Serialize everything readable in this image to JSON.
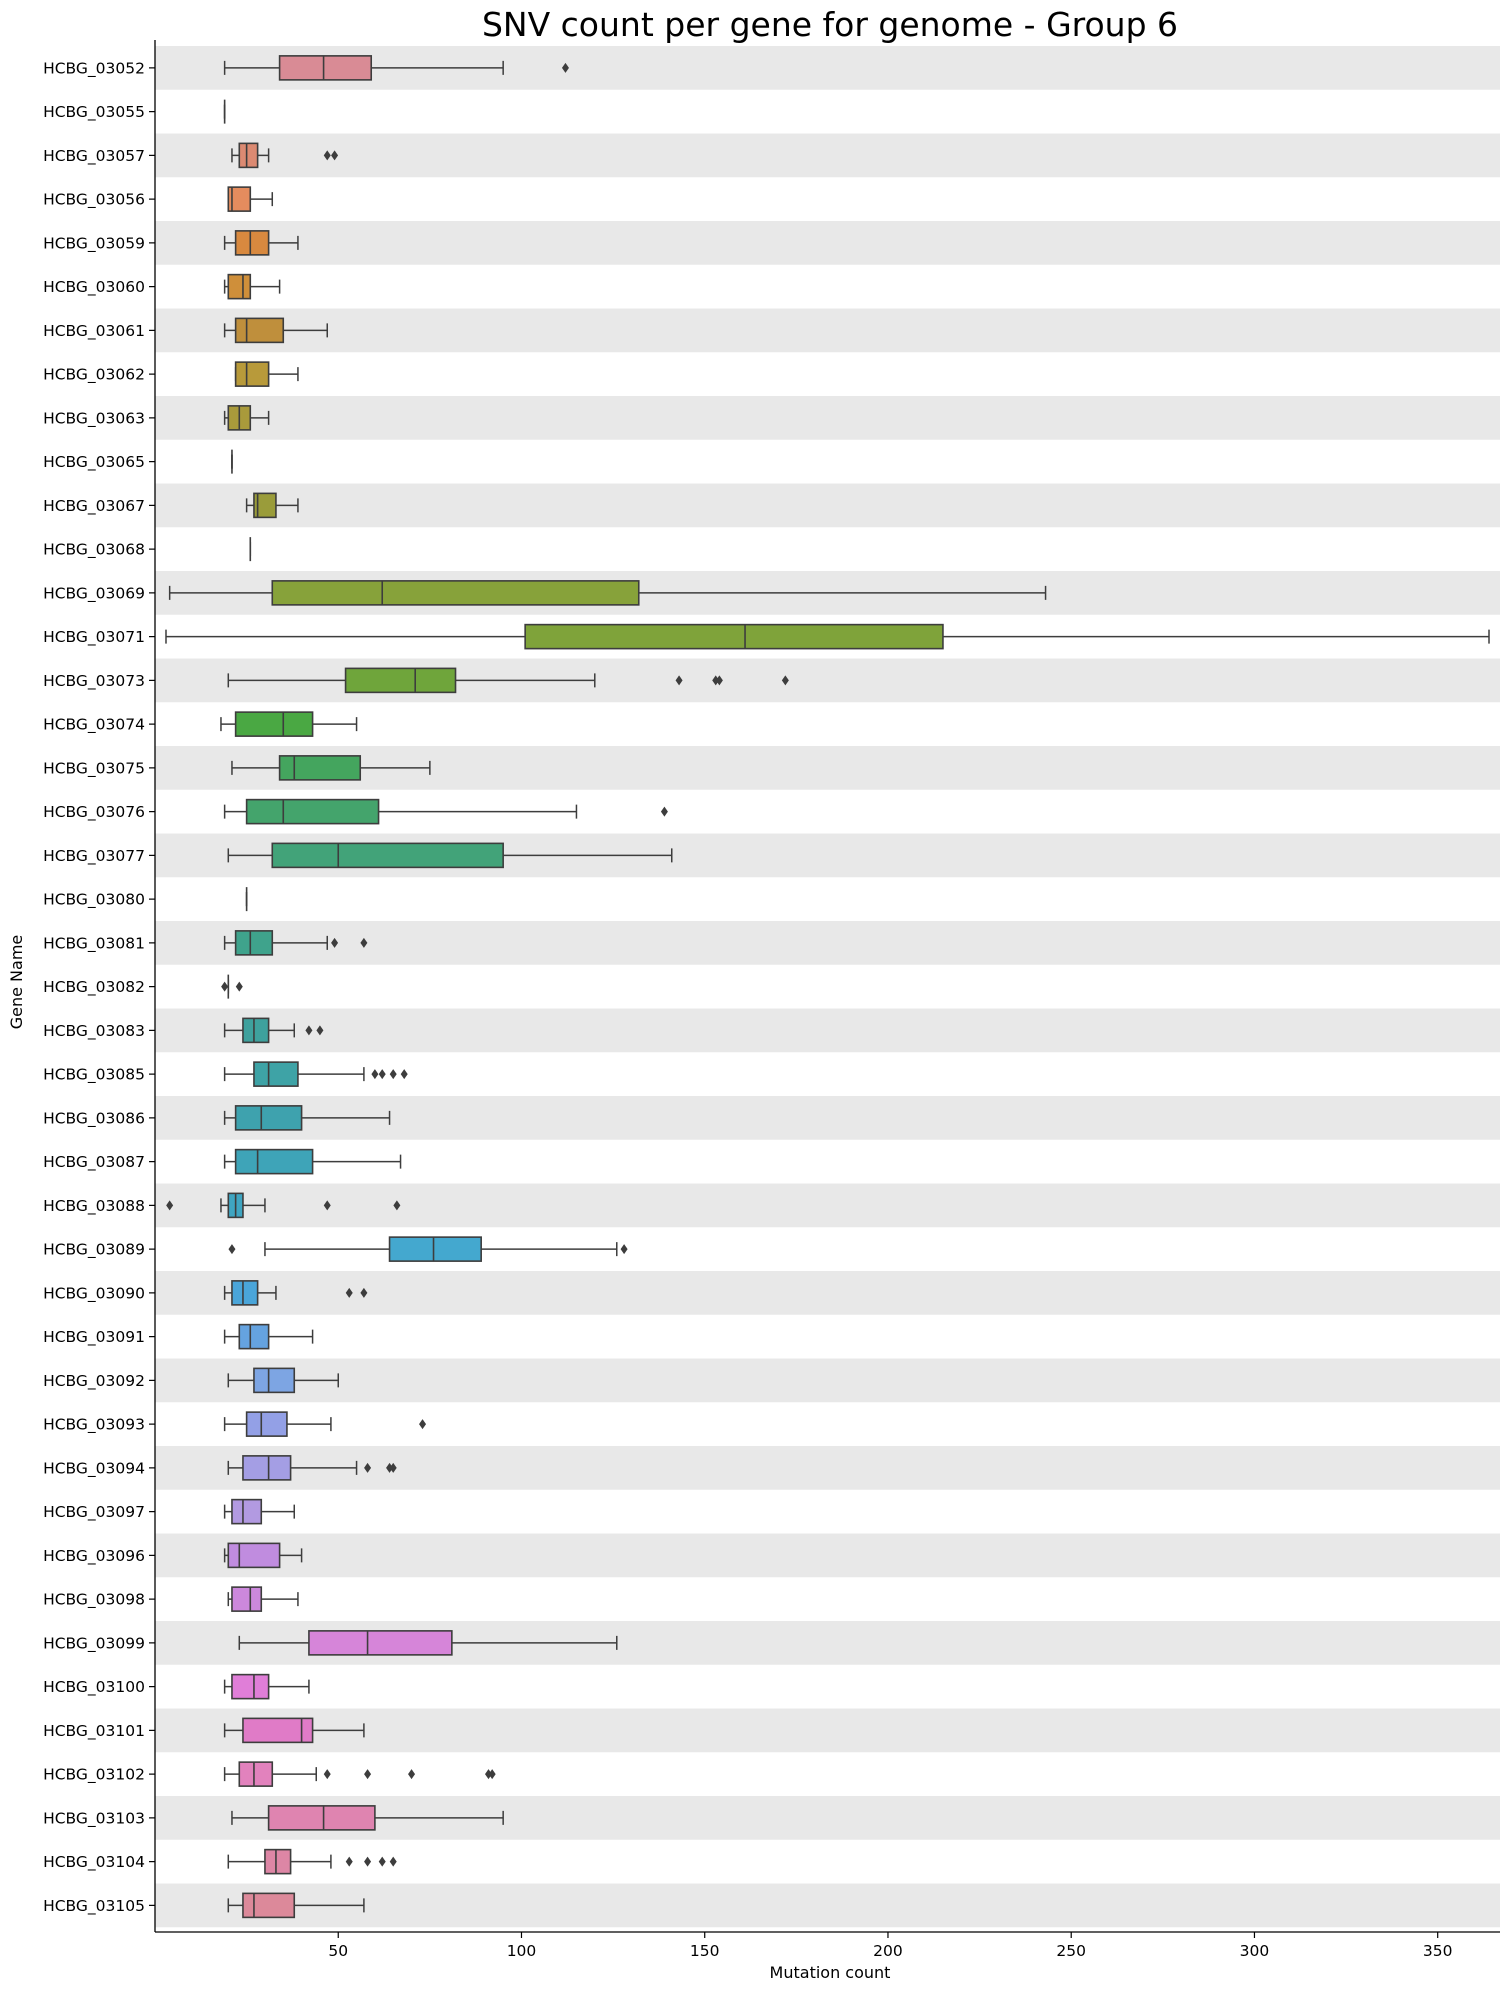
{
  "chart_data": {
    "type": "boxplot",
    "orientation": "horizontal",
    "title": "SNV count per gene for genome - Group 6",
    "xlabel": "Mutation count",
    "ylabel": "Gene Name",
    "xlim": [
      0,
      367
    ],
    "xticks": [
      50,
      100,
      150,
      200,
      250,
      300,
      350
    ],
    "row_band_color": "#e8e8e8",
    "box_edge_color": "#3d3d3d",
    "categories": [
      {
        "name": "HCBG_03052",
        "color": "#d98b95",
        "whislo": 19,
        "q1": 34,
        "med": 46,
        "q3": 59,
        "whishi": 95,
        "outliers": [
          112
        ]
      },
      {
        "name": "HCBG_03055",
        "color": "#d98d87",
        "whislo": 19,
        "q1": 19,
        "med": 19,
        "q3": 19,
        "whishi": 19,
        "outliers": []
      },
      {
        "name": "HCBG_03057",
        "color": "#dc8a72",
        "whislo": 21,
        "q1": 23,
        "med": 25,
        "q3": 28,
        "whishi": 31,
        "outliers": [
          47,
          49
        ]
      },
      {
        "name": "HCBG_03056",
        "color": "#e48c5e",
        "whislo": 20,
        "q1": 20,
        "med": 21,
        "q3": 26,
        "whishi": 32,
        "outliers": []
      },
      {
        "name": "HCBG_03059",
        "color": "#d8893f",
        "whislo": 19,
        "q1": 22,
        "med": 26,
        "q3": 31,
        "whishi": 39,
        "outliers": []
      },
      {
        "name": "HCBG_03060",
        "color": "#cf8f3a",
        "whislo": 19,
        "q1": 20,
        "med": 24,
        "q3": 26,
        "whishi": 34,
        "outliers": []
      },
      {
        "name": "HCBG_03061",
        "color": "#bf8f3c",
        "whislo": 19,
        "q1": 22,
        "med": 25,
        "q3": 35,
        "whishi": 47,
        "outliers": []
      },
      {
        "name": "HCBG_03062",
        "color": "#b89a3a",
        "whislo": 22,
        "q1": 22,
        "med": 25,
        "q3": 31,
        "whishi": 39,
        "outliers": []
      },
      {
        "name": "HCBG_03063",
        "color": "#a99a3b",
        "whislo": 19,
        "q1": 20,
        "med": 23,
        "q3": 26,
        "whishi": 31,
        "outliers": []
      },
      {
        "name": "HCBG_03065",
        "color": "#a39b3c",
        "whislo": 21,
        "q1": 21,
        "med": 21,
        "q3": 21,
        "whishi": 21,
        "outliers": []
      },
      {
        "name": "HCBG_03067",
        "color": "#9a9c3a",
        "whislo": 25,
        "q1": 27,
        "med": 28,
        "q3": 33,
        "whishi": 39,
        "outliers": []
      },
      {
        "name": "HCBG_03068",
        "color": "#92a03a",
        "whislo": 26,
        "q1": 26,
        "med": 26,
        "q3": 26,
        "whishi": 26,
        "outliers": []
      },
      {
        "name": "HCBG_03069",
        "color": "#87a23a",
        "whislo": 4,
        "q1": 32,
        "med": 62,
        "q3": 132,
        "whishi": 243,
        "outliers": []
      },
      {
        "name": "HCBG_03071",
        "color": "#7fa33a",
        "whislo": 3,
        "q1": 101,
        "med": 161,
        "q3": 215,
        "whishi": 364,
        "outliers": []
      },
      {
        "name": "HCBG_03073",
        "color": "#6fa53b",
        "whislo": 20,
        "q1": 52,
        "med": 71,
        "q3": 82,
        "whishi": 120,
        "outliers": [
          143,
          153,
          154,
          172
        ]
      },
      {
        "name": "HCBG_03074",
        "color": "#4aa843",
        "whislo": 18,
        "q1": 22,
        "med": 35,
        "q3": 43,
        "whishi": 55,
        "outliers": []
      },
      {
        "name": "HCBG_03075",
        "color": "#44a55e",
        "whislo": 21,
        "q1": 34,
        "med": 38,
        "q3": 56,
        "whishi": 75,
        "outliers": []
      },
      {
        "name": "HCBG_03076",
        "color": "#44a46c",
        "whislo": 19,
        "q1": 25,
        "med": 35,
        "q3": 61,
        "whishi": 115,
        "outliers": [
          139
        ]
      },
      {
        "name": "HCBG_03077",
        "color": "#42a379",
        "whislo": 20,
        "q1": 32,
        "med": 50,
        "q3": 95,
        "whishi": 141,
        "outliers": []
      },
      {
        "name": "HCBG_03080",
        "color": "#41a383",
        "whislo": 25,
        "q1": 25,
        "med": 25,
        "q3": 25,
        "whishi": 25,
        "outliers": []
      },
      {
        "name": "HCBG_03081",
        "color": "#3fa38c",
        "whislo": 19,
        "q1": 22,
        "med": 26,
        "q3": 32,
        "whishi": 47,
        "outliers": [
          49,
          57
        ]
      },
      {
        "name": "HCBG_03082",
        "color": "#3ea295",
        "whislo": 20,
        "q1": 20,
        "med": 20,
        "q3": 20,
        "whishi": 20,
        "outliers": [
          19,
          23
        ]
      },
      {
        "name": "HCBG_03083",
        "color": "#3ea19d",
        "whislo": 19,
        "q1": 24,
        "med": 27,
        "q3": 31,
        "whishi": 38,
        "outliers": [
          42,
          45
        ]
      },
      {
        "name": "HCBG_03085",
        "color": "#3ea3a6",
        "whislo": 19,
        "q1": 27,
        "med": 31,
        "q3": 39,
        "whishi": 57,
        "outliers": [
          60,
          62,
          65,
          68
        ]
      },
      {
        "name": "HCBG_03086",
        "color": "#3ea2ae",
        "whislo": 19,
        "q1": 22,
        "med": 29,
        "q3": 40,
        "whishi": 64,
        "outliers": []
      },
      {
        "name": "HCBG_03087",
        "color": "#3ea4b8",
        "whislo": 19,
        "q1": 22,
        "med": 28,
        "q3": 43,
        "whishi": 67,
        "outliers": []
      },
      {
        "name": "HCBG_03088",
        "color": "#3fa5c1",
        "whislo": 18,
        "q1": 20,
        "med": 22,
        "q3": 24,
        "whishi": 30,
        "outliers": [
          4,
          47,
          66
        ]
      },
      {
        "name": "HCBG_03089",
        "color": "#44a8cf",
        "whislo": 30,
        "q1": 64,
        "med": 76,
        "q3": 89,
        "whishi": 126,
        "outliers": [
          21,
          128
        ]
      },
      {
        "name": "HCBG_03090",
        "color": "#4aa5d9",
        "whislo": 19,
        "q1": 21,
        "med": 24,
        "q3": 28,
        "whishi": 33,
        "outliers": [
          53,
          57
        ]
      },
      {
        "name": "HCBG_03091",
        "color": "#65a3e0",
        "whislo": 19,
        "q1": 23,
        "med": 26,
        "q3": 31,
        "whishi": 43,
        "outliers": []
      },
      {
        "name": "HCBG_03092",
        "color": "#7da5e3",
        "whislo": 20,
        "q1": 27,
        "med": 31,
        "q3": 38,
        "whishi": 50,
        "outliers": []
      },
      {
        "name": "HCBG_03093",
        "color": "#93a0e6",
        "whislo": 19,
        "q1": 25,
        "med": 29,
        "q3": 36,
        "whishi": 48,
        "outliers": [
          73
        ]
      },
      {
        "name": "HCBG_03094",
        "color": "#a49ee4",
        "whislo": 20,
        "q1": 24,
        "med": 31,
        "q3": 37,
        "whishi": 55,
        "outliers": [
          58,
          64,
          65
        ]
      },
      {
        "name": "HCBG_03097",
        "color": "#b29ae1",
        "whislo": 19,
        "q1": 21,
        "med": 24,
        "q3": 29,
        "whishi": 38,
        "outliers": []
      },
      {
        "name": "HCBG_03096",
        "color": "#c08cdf",
        "whislo": 19,
        "q1": 20,
        "med": 23,
        "q3": 34,
        "whishi": 40,
        "outliers": []
      },
      {
        "name": "HCBG_03098",
        "color": "#cc88dc",
        "whislo": 20,
        "q1": 21,
        "med": 26,
        "q3": 29,
        "whishi": 39,
        "outliers": []
      },
      {
        "name": "HCBG_03099",
        "color": "#d685d9",
        "whislo": 23,
        "q1": 42,
        "med": 58,
        "q3": 81,
        "whishi": 126,
        "outliers": []
      },
      {
        "name": "HCBG_03100",
        "color": "#e07ed8",
        "whislo": 19,
        "q1": 21,
        "med": 27,
        "q3": 31,
        "whishi": 42,
        "outliers": []
      },
      {
        "name": "HCBG_03101",
        "color": "#e07bc7",
        "whislo": 19,
        "q1": 24,
        "med": 40,
        "q3": 43,
        "whishi": 57,
        "outliers": []
      },
      {
        "name": "HCBG_03102",
        "color": "#e282bd",
        "whislo": 19,
        "q1": 23,
        "med": 27,
        "q3": 32,
        "whishi": 44,
        "outliers": [
          47,
          58,
          70,
          91,
          92
        ]
      },
      {
        "name": "HCBG_03103",
        "color": "#df84b0",
        "whislo": 21,
        "q1": 31,
        "med": 46,
        "q3": 60,
        "whishi": 95,
        "outliers": []
      },
      {
        "name": "HCBG_03104",
        "color": "#dd86a5",
        "whislo": 20,
        "q1": 30,
        "med": 33,
        "q3": 37,
        "whishi": 48,
        "outliers": [
          53,
          58,
          62,
          65
        ]
      },
      {
        "name": "HCBG_03105",
        "color": "#dc899a",
        "whislo": 20,
        "q1": 24,
        "med": 27,
        "q3": 38,
        "whishi": 57,
        "outliers": []
      }
    ]
  }
}
